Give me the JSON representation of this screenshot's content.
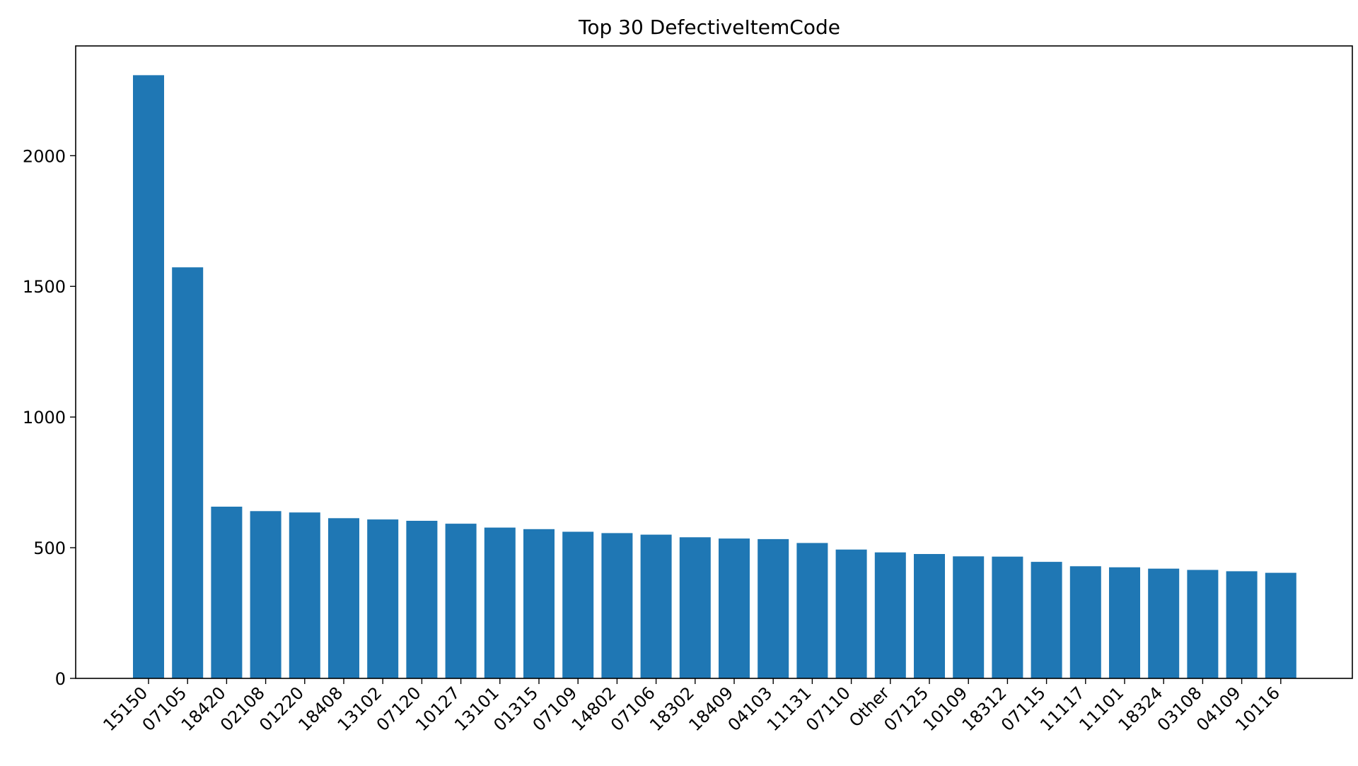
{
  "chart_data": {
    "type": "bar",
    "title": "Top 30 DefectiveItemCode",
    "xlabel": "",
    "ylabel": "",
    "ylim": [
      0,
      2420
    ],
    "yticks": [
      0,
      500,
      1000,
      1500,
      2000
    ],
    "bar_color": "#1f77b4",
    "grid": false,
    "categories": [
      "15150",
      "07105",
      "18420",
      "02108",
      "01220",
      "18408",
      "13102",
      "07120",
      "10127",
      "13101",
      "01315",
      "07109",
      "14802",
      "07106",
      "18302",
      "18409",
      "04103",
      "11131",
      "07110",
      "Other",
      "07125",
      "10109",
      "18312",
      "07115",
      "11117",
      "11101",
      "18324",
      "03108",
      "04109",
      "10116"
    ],
    "values": [
      2308,
      1573,
      657,
      640,
      635,
      613,
      608,
      603,
      592,
      577,
      571,
      561,
      556,
      550,
      540,
      535,
      533,
      518,
      493,
      482,
      476,
      467,
      466,
      446,
      429,
      425,
      420,
      415,
      410,
      404
    ]
  }
}
